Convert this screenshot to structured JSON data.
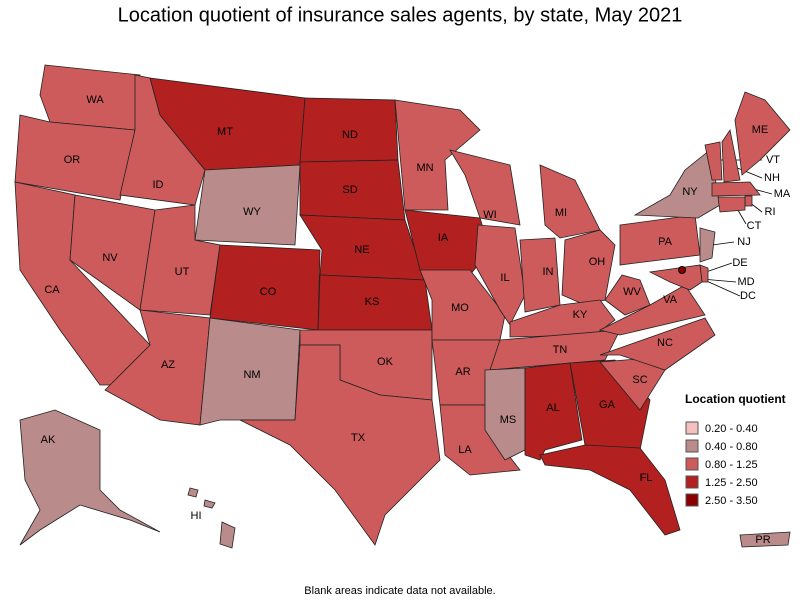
{
  "title": "Location quotient of insurance sales agents, by state, May 2021",
  "legend": {
    "title": "Location quotient",
    "bins": [
      {
        "label": "0.20 - 0.40",
        "color": "#f6c0c0"
      },
      {
        "label": "0.40 - 0.80",
        "color": "#b98b8b"
      },
      {
        "label": "0.80 - 1.25",
        "color": "#cd5b5b"
      },
      {
        "label": "1.25 - 2.50",
        "color": "#b22020"
      },
      {
        "label": "2.50 - 3.50",
        "color": "#8b0000"
      }
    ]
  },
  "states": [
    {
      "abbr": "WA",
      "bin": 2
    },
    {
      "abbr": "OR",
      "bin": 2
    },
    {
      "abbr": "CA",
      "bin": 2
    },
    {
      "abbr": "NV",
      "bin": 2
    },
    {
      "abbr": "ID",
      "bin": 2
    },
    {
      "abbr": "MT",
      "bin": 3
    },
    {
      "abbr": "WY",
      "bin": 1
    },
    {
      "abbr": "UT",
      "bin": 2
    },
    {
      "abbr": "AZ",
      "bin": 2
    },
    {
      "abbr": "CO",
      "bin": 3
    },
    {
      "abbr": "NM",
      "bin": 1
    },
    {
      "abbr": "ND",
      "bin": 3
    },
    {
      "abbr": "SD",
      "bin": 3
    },
    {
      "abbr": "NE",
      "bin": 3
    },
    {
      "abbr": "KS",
      "bin": 3
    },
    {
      "abbr": "OK",
      "bin": 2
    },
    {
      "abbr": "TX",
      "bin": 2
    },
    {
      "abbr": "MN",
      "bin": 2
    },
    {
      "abbr": "IA",
      "bin": 3
    },
    {
      "abbr": "MO",
      "bin": 2
    },
    {
      "abbr": "AR",
      "bin": 2
    },
    {
      "abbr": "LA",
      "bin": 2
    },
    {
      "abbr": "WI",
      "bin": 2
    },
    {
      "abbr": "IL",
      "bin": 2
    },
    {
      "abbr": "IN",
      "bin": 2
    },
    {
      "abbr": "MI",
      "bin": 2
    },
    {
      "abbr": "OH",
      "bin": 2
    },
    {
      "abbr": "KY",
      "bin": 2
    },
    {
      "abbr": "TN",
      "bin": 2
    },
    {
      "abbr": "MS",
      "bin": 1
    },
    {
      "abbr": "AL",
      "bin": 3
    },
    {
      "abbr": "GA",
      "bin": 3
    },
    {
      "abbr": "FL",
      "bin": 3
    },
    {
      "abbr": "SC",
      "bin": 2
    },
    {
      "abbr": "NC",
      "bin": 2
    },
    {
      "abbr": "VA",
      "bin": 2
    },
    {
      "abbr": "WV",
      "bin": 2
    },
    {
      "abbr": "PA",
      "bin": 2
    },
    {
      "abbr": "NY",
      "bin": 1
    },
    {
      "abbr": "VT",
      "bin": 2
    },
    {
      "abbr": "NH",
      "bin": 2
    },
    {
      "abbr": "ME",
      "bin": 2
    },
    {
      "abbr": "MA",
      "bin": 2
    },
    {
      "abbr": "RI",
      "bin": 2
    },
    {
      "abbr": "CT",
      "bin": 2
    },
    {
      "abbr": "NJ",
      "bin": 1
    },
    {
      "abbr": "DE",
      "bin": 2
    },
    {
      "abbr": "MD",
      "bin": 2
    },
    {
      "abbr": "DC",
      "bin": 4
    },
    {
      "abbr": "AK",
      "bin": 1
    },
    {
      "abbr": "HI",
      "bin": 1
    },
    {
      "abbr": "PR",
      "bin": 1
    }
  ],
  "footnote": "Blank areas indicate data not available."
}
